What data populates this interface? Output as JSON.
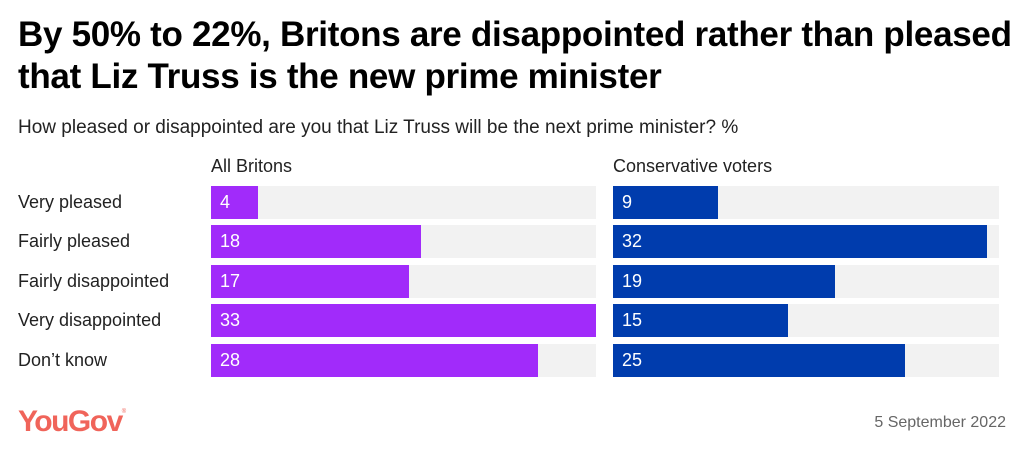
{
  "header": {
    "title": "By 50% to 22%, Britons are disappointed rather than pleased that Liz Truss is the new prime minister",
    "subtitle": "How pleased or disappointed are you that Liz Truss will be the next prime minister? %"
  },
  "footer": {
    "logo": "YouGov",
    "logo_mark": "®",
    "date": "5 September 2022"
  },
  "chart_data": {
    "type": "bar",
    "orientation": "horizontal",
    "title": "By 50% to 22%, Britons are disappointed rather than pleased that Liz Truss is the new prime minister",
    "subtitle": "How pleased or disappointed are you that Liz Truss will be the next prime minister? %",
    "categories": [
      "Very pleased",
      "Fairly pleased",
      "Fairly disappointed",
      "Very disappointed",
      "Don’t know"
    ],
    "xlim": [
      0,
      33
    ],
    "grid": false,
    "series": [
      {
        "name": "All Britons",
        "color": "#a12bfa",
        "values": [
          4,
          18,
          17,
          33,
          28
        ]
      },
      {
        "name": "Conservative voters",
        "color": "#003cad",
        "values": [
          9,
          32,
          19,
          15,
          25
        ]
      }
    ],
    "track_color": "#f2f2f2"
  }
}
